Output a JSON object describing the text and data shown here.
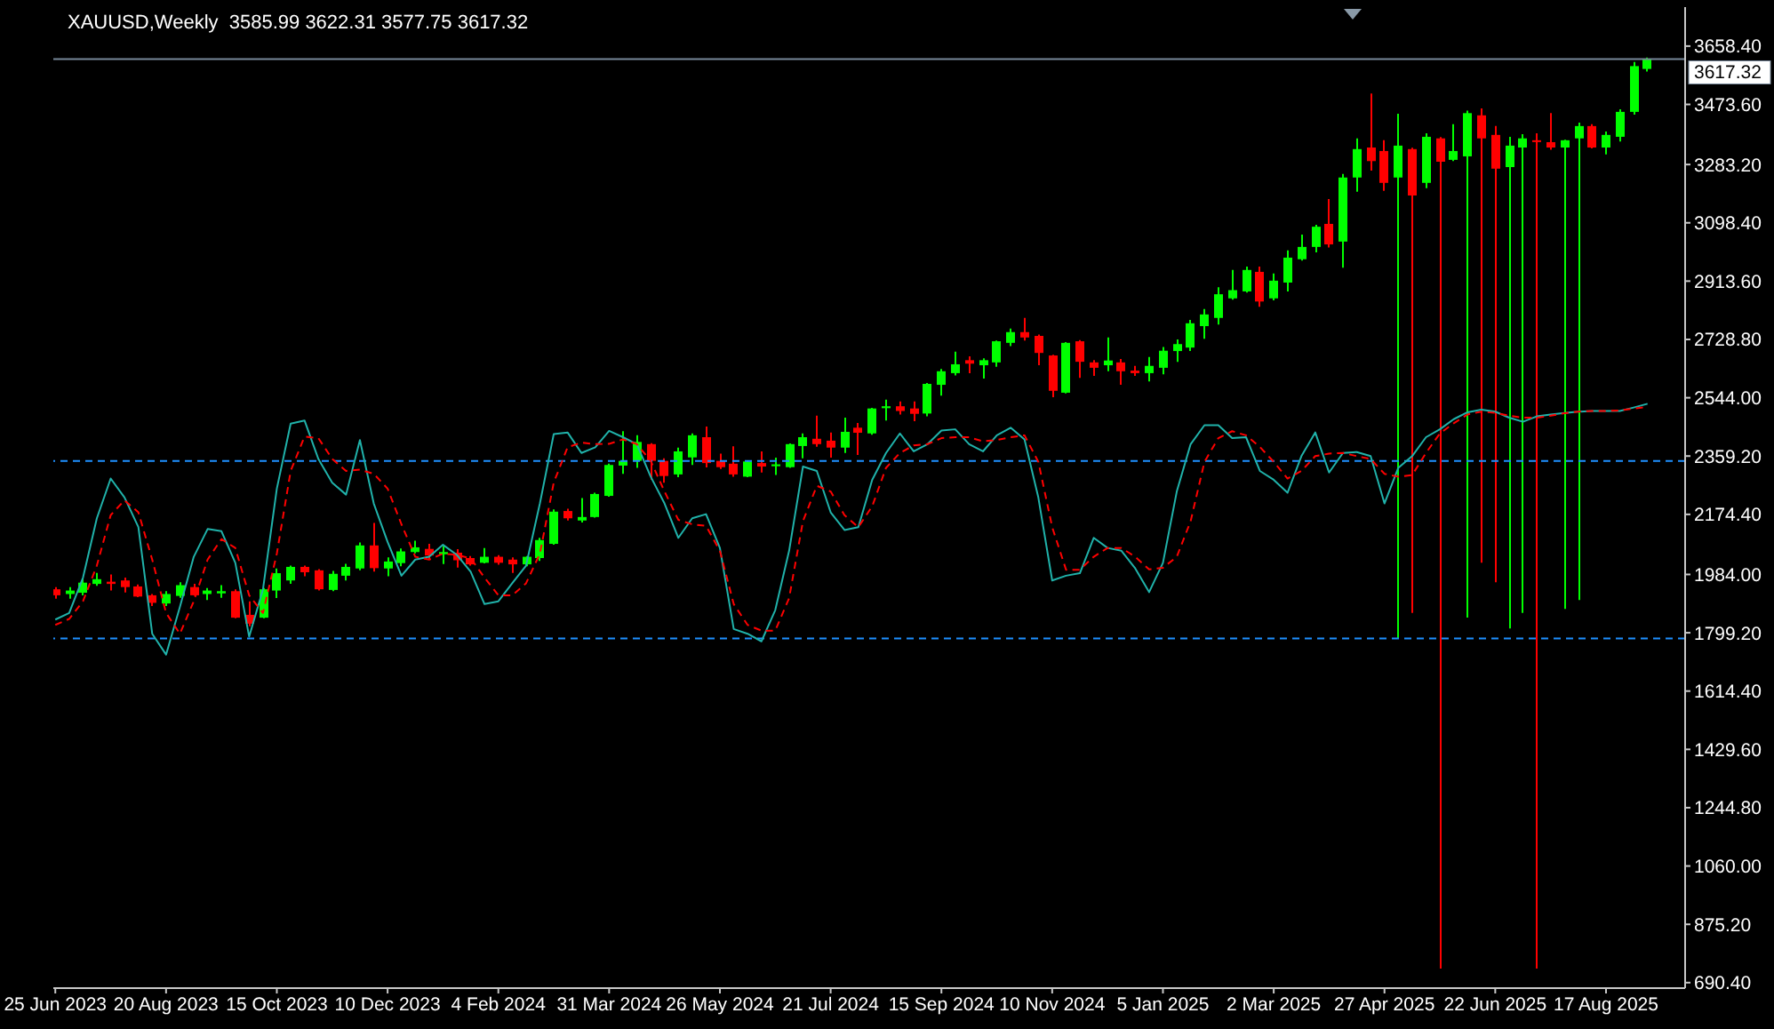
{
  "chart_data": {
    "type": "candlestick",
    "title": "XAUUSD,Weekly  3585.99 3622.31 3577.75 3617.32",
    "marker": "none",
    "x": [
      "2023-06-25",
      "2023-07-02",
      "2023-07-09",
      "2023-07-16",
      "2023-07-23",
      "2023-07-30",
      "2023-08-06",
      "2023-08-13",
      "2023-08-20",
      "2023-08-27",
      "2023-09-03",
      "2023-09-10",
      "2023-09-17",
      "2023-09-24",
      "2023-10-01",
      "2023-10-08",
      "2023-10-15",
      "2023-10-22",
      "2023-10-29",
      "2023-11-05",
      "2023-11-12",
      "2023-11-19",
      "2023-11-26",
      "2023-12-03",
      "2023-12-10",
      "2023-12-17",
      "2023-12-24",
      "2023-12-31",
      "2024-01-07",
      "2024-01-14",
      "2024-01-21",
      "2024-01-28",
      "2024-02-04",
      "2024-02-11",
      "2024-02-18",
      "2024-02-25",
      "2024-03-03",
      "2024-03-10",
      "2024-03-17",
      "2024-03-24",
      "2024-03-31",
      "2024-04-07",
      "2024-04-14",
      "2024-04-21",
      "2024-04-28",
      "2024-05-05",
      "2024-05-12",
      "2024-05-19",
      "2024-05-26",
      "2024-06-02",
      "2024-06-09",
      "2024-06-16",
      "2024-06-23",
      "2024-06-30",
      "2024-07-07",
      "2024-07-14",
      "2024-07-21",
      "2024-07-28",
      "2024-08-04",
      "2024-08-11",
      "2024-08-18",
      "2024-08-25",
      "2024-09-01",
      "2024-09-08",
      "2024-09-15",
      "2024-09-22",
      "2024-09-29",
      "2024-10-06",
      "2024-10-13",
      "2024-10-20",
      "2024-10-27",
      "2024-11-03",
      "2024-11-10",
      "2024-11-17",
      "2024-11-24",
      "2024-12-01",
      "2024-12-08",
      "2024-12-15",
      "2024-12-22",
      "2024-12-29",
      "2025-01-05",
      "2025-01-12",
      "2025-01-19",
      "2025-01-26",
      "2025-02-02",
      "2025-02-09",
      "2025-02-16",
      "2025-02-23",
      "2025-03-02",
      "2025-03-09",
      "2025-03-16",
      "2025-03-23",
      "2025-03-30",
      "2025-04-06",
      "2025-04-13",
      "2025-04-20",
      "2025-04-27",
      "2025-05-04",
      "2025-05-11",
      "2025-05-18",
      "2025-05-25",
      "2025-06-01",
      "2025-06-08",
      "2025-06-15",
      "2025-06-22",
      "2025-06-29",
      "2025-07-06",
      "2025-07-13",
      "2025-07-20",
      "2025-07-27",
      "2025-08-03",
      "2025-08-10",
      "2025-08-17",
      "2025-08-24",
      "2025-08-31",
      "2025-09-07"
    ],
    "series": [
      {
        "type": "line",
        "color": "#20b2aa",
        "line_style": "solid",
        "values": [
          1841,
          1862,
          1974,
          2162,
          2288,
          2228,
          2134,
          1796,
          1730,
          1881,
          2040,
          2128,
          2121,
          2021,
          1787,
          1937,
          2256,
          2462,
          2472,
          2350,
          2275,
          2237,
          2410,
          2209,
          2087,
          1980,
          2031,
          2040,
          2078,
          2046,
          1993,
          1890,
          1899,
          1956,
          2012,
          2209,
          2429,
          2434,
          2369,
          2387,
          2439,
          2419,
          2397,
          2294,
          2209,
          2100,
          2162,
          2175,
          2068,
          1811,
          1796,
          1772,
          1871,
          2059,
          2326,
          2312,
          2181,
          2125,
          2134,
          2284,
          2369,
          2431,
          2374,
          2397,
          2440,
          2444,
          2397,
          2374,
          2425,
          2449,
          2412,
          2228,
          1965,
          1980,
          1988,
          2100,
          2068,
          2059,
          2003,
          1928,
          2021,
          2247,
          2397,
          2457,
          2457,
          2416,
          2419,
          2312,
          2284,
          2243,
          2359,
          2434,
          2307,
          2369,
          2372,
          2359,
          2209,
          2322,
          2359,
          2419,
          2444,
          2476,
          2498,
          2506,
          2500,
          2481,
          2468,
          2485,
          2491,
          2496,
          2500,
          2502,
          2502,
          2502,
          2513,
          2525
        ]
      },
      {
        "type": "line",
        "color": "#ff0000",
        "line_style": "dashed",
        "values": [
          1824,
          1843,
          1899,
          2012,
          2172,
          2219,
          2181,
          2031,
          1862,
          1796,
          1899,
          2031,
          2096,
          2068,
          1918,
          1862,
          2050,
          2312,
          2421,
          2416,
          2350,
          2312,
          2316,
          2303,
          2256,
          2143,
          2040,
          2031,
          2050,
          2046,
          2035,
          1974,
          1918,
          1918,
          1956,
          2050,
          2275,
          2387,
          2402,
          2397,
          2398,
          2412,
          2397,
          2344,
          2247,
          2157,
          2143,
          2138,
          2059,
          1890,
          1824,
          1806,
          1806,
          1909,
          2153,
          2265,
          2247,
          2172,
          2134,
          2200,
          2322,
          2369,
          2393,
          2397,
          2416,
          2419,
          2419,
          2406,
          2410,
          2419,
          2425,
          2341,
          2134,
          1999,
          1999,
          2040,
          2068,
          2068,
          2040,
          2000,
          2005,
          2040,
          2153,
          2341,
          2416,
          2438,
          2425,
          2388,
          2341,
          2288,
          2312,
          2359,
          2367,
          2369,
          2359,
          2350,
          2303,
          2294,
          2299,
          2369,
          2431,
          2463,
          2491,
          2500,
          2496,
          2487,
          2481,
          2481,
          2487,
          2495,
          2500,
          2502,
          2502,
          2504,
          2510,
          2515
        ]
      },
      {
        "ohlc": [
          [
            1937,
            1944,
            1907,
            1918
          ],
          [
            1922,
            1944,
            1907,
            1933
          ],
          [
            1926,
            1971,
            1918,
            1958
          ],
          [
            1954,
            1989,
            1948,
            1969
          ],
          [
            1961,
            1984,
            1933,
            1954
          ],
          [
            1965,
            1974,
            1927,
            1944
          ],
          [
            1946,
            1952,
            1912,
            1914
          ],
          [
            1918,
            1922,
            1884,
            1894
          ],
          [
            1892,
            1931,
            1884,
            1922
          ],
          [
            1916,
            1959,
            1910,
            1950
          ],
          [
            1944,
            1954,
            1916,
            1918
          ],
          [
            1922,
            1941,
            1903,
            1933
          ],
          [
            1924,
            1950,
            1910,
            1931
          ],
          [
            1931,
            1937,
            1845,
            1847
          ],
          [
            1856,
            1899,
            1820,
            1828
          ],
          [
            1847,
            1941,
            1845,
            1937
          ],
          [
            1933,
            2003,
            1909,
            1988
          ],
          [
            1965,
            2012,
            1954,
            2008
          ],
          [
            2008,
            2012,
            1978,
            1991
          ],
          [
            1997,
            2001,
            1933,
            1937
          ],
          [
            1935,
            1995,
            1931,
            1986
          ],
          [
            1980,
            2018,
            1965,
            2008
          ],
          [
            2003,
            2085,
            1997,
            2076
          ],
          [
            2076,
            2147,
            1993,
            2004
          ],
          [
            2003,
            2038,
            1978,
            2025
          ],
          [
            2020,
            2066,
            2010,
            2057
          ],
          [
            2055,
            2091,
            2051,
            2070
          ],
          [
            2065,
            2081,
            2031,
            2044
          ],
          [
            2048,
            2074,
            2017,
            2055
          ],
          [
            2053,
            2064,
            2006,
            2029
          ],
          [
            2036,
            2042,
            2012,
            2016
          ],
          [
            2021,
            2068,
            2019,
            2040
          ],
          [
            2040,
            2045,
            2015,
            2021
          ],
          [
            2031,
            2038,
            1989,
            2016
          ],
          [
            2016,
            2042,
            2010,
            2040
          ],
          [
            2036,
            2100,
            2027,
            2093
          ],
          [
            2081,
            2190,
            2078,
            2183
          ],
          [
            2185,
            2192,
            2155,
            2162
          ],
          [
            2155,
            2226,
            2149,
            2166
          ],
          [
            2166,
            2243,
            2164,
            2239
          ],
          [
            2233,
            2335,
            2230,
            2331
          ],
          [
            2329,
            2438,
            2303,
            2344
          ],
          [
            2344,
            2425,
            2322,
            2404
          ],
          [
            2397,
            2400,
            2284,
            2344
          ],
          [
            2344,
            2352,
            2275,
            2296
          ],
          [
            2301,
            2386,
            2292,
            2374
          ],
          [
            2355,
            2431,
            2331,
            2425
          ],
          [
            2419,
            2453,
            2323,
            2337
          ],
          [
            2344,
            2367,
            2318,
            2324
          ],
          [
            2335,
            2390,
            2294,
            2301
          ],
          [
            2294,
            2346,
            2292,
            2342
          ],
          [
            2337,
            2374,
            2307,
            2326
          ],
          [
            2327,
            2354,
            2299,
            2333
          ],
          [
            2324,
            2399,
            2322,
            2397
          ],
          [
            2391,
            2431,
            2352,
            2419
          ],
          [
            2414,
            2487,
            2389,
            2397
          ],
          [
            2408,
            2434,
            2354,
            2386
          ],
          [
            2386,
            2481,
            2369,
            2436
          ],
          [
            2449,
            2464,
            2363,
            2433
          ],
          [
            2431,
            2512,
            2427,
            2510
          ],
          [
            2511,
            2538,
            2472,
            2517
          ],
          [
            2517,
            2532,
            2491,
            2502
          ],
          [
            2510,
            2532,
            2470,
            2493
          ],
          [
            2494,
            2591,
            2485,
            2588
          ],
          [
            2585,
            2635,
            2551,
            2628
          ],
          [
            2622,
            2690,
            2615,
            2650
          ],
          [
            2663,
            2675,
            2622,
            2652
          ],
          [
            2647,
            2669,
            2605,
            2663
          ],
          [
            2656,
            2725,
            2642,
            2723
          ],
          [
            2718,
            2763,
            2708,
            2752
          ],
          [
            2752,
            2797,
            2725,
            2735
          ],
          [
            2740,
            2744,
            2647,
            2686
          ],
          [
            2678,
            2680,
            2546,
            2566
          ],
          [
            2560,
            2720,
            2558,
            2718
          ],
          [
            2723,
            2727,
            2607,
            2658
          ],
          [
            2656,
            2663,
            2613,
            2639
          ],
          [
            2647,
            2735,
            2628,
            2662
          ],
          [
            2656,
            2667,
            2585,
            2628
          ],
          [
            2630,
            2645,
            2613,
            2622
          ],
          [
            2622,
            2673,
            2596,
            2645
          ],
          [
            2639,
            2705,
            2618,
            2693
          ],
          [
            2692,
            2729,
            2658,
            2714
          ],
          [
            2703,
            2791,
            2692,
            2780
          ],
          [
            2771,
            2825,
            2731,
            2808
          ],
          [
            2797,
            2894,
            2776,
            2872
          ],
          [
            2859,
            2949,
            2855,
            2885
          ],
          [
            2881,
            2960,
            2877,
            2949
          ],
          [
            2943,
            2960,
            2832,
            2849
          ],
          [
            2859,
            2938,
            2853,
            2915
          ],
          [
            2909,
            3011,
            2881,
            2988
          ],
          [
            2983,
            3061,
            2979,
            3022
          ],
          [
            3022,
            3092,
            3005,
            3086
          ],
          [
            3095,
            3174,
            3020,
            3030
          ],
          [
            3039,
            3253,
            2956,
            3242
          ],
          [
            3242,
            3366,
            3197,
            3332
          ],
          [
            3337,
            3508,
            3264,
            3294
          ],
          [
            3326,
            3360,
            3200,
            3225
          ],
          [
            3242,
            3444,
            1781,
            3343
          ],
          [
            3332,
            3336,
            1862,
            3185
          ],
          [
            3225,
            3382,
            3208,
            3371
          ],
          [
            3366,
            3370,
            735,
            3292
          ],
          [
            3298,
            3411,
            3294,
            3326
          ],
          [
            3309,
            3454,
            1847,
            3446
          ],
          [
            3439,
            3461,
            2021,
            3366
          ],
          [
            3377,
            3405,
            1959,
            3270
          ],
          [
            3275,
            3371,
            1813,
            3343
          ],
          [
            3337,
            3379,
            1862,
            3366
          ],
          [
            3360,
            3382,
            735,
            3356
          ],
          [
            3354,
            3446,
            3330,
            3337
          ],
          [
            3337,
            3362,
            1875,
            3360
          ],
          [
            3366,
            3416,
            1903,
            3405
          ],
          [
            3405,
            3411,
            3334,
            3337
          ],
          [
            3337,
            3388,
            3315,
            3377
          ],
          [
            3371,
            3458,
            3356,
            3450
          ],
          [
            3450,
            3608,
            3441,
            3595
          ],
          [
            3585.99,
            3622.31,
            3577.75,
            3617.32
          ]
        ],
        "colors": [
          "#ff0000",
          "#00ff00",
          "#00ff00",
          "#00ff00",
          "#ff0000",
          "#ff0000",
          "#ff0000",
          "#ff0000",
          "#00ff00",
          "#00ff00",
          "#ff0000",
          "#00ff00",
          "#00ff00",
          "#ff0000",
          "#ff0000",
          "#00ff00",
          "#00ff00",
          "#00ff00",
          "#ff0000",
          "#ff0000",
          "#00ff00",
          "#00ff00",
          "#00ff00",
          "#ff0000",
          "#00ff00",
          "#00ff00",
          "#00ff00",
          "#ff0000",
          "#00ff00",
          "#ff0000",
          "#ff0000",
          "#00ff00",
          "#ff0000",
          "#ff0000",
          "#00ff00",
          "#00ff00",
          "#00ff00",
          "#ff0000",
          "#00ff00",
          "#00ff00",
          "#00ff00",
          "#00ff00",
          "#00ff00",
          "#ff0000",
          "#ff0000",
          "#00ff00",
          "#00ff00",
          "#ff0000",
          "#ff0000",
          "#ff0000",
          "#00ff00",
          "#ff0000",
          "#00ff00",
          "#00ff00",
          "#00ff00",
          "#ff0000",
          "#ff0000",
          "#00ff00",
          "#ff0000",
          "#00ff00",
          "#00ff00",
          "#ff0000",
          "#ff0000",
          "#00ff00",
          "#00ff00",
          "#00ff00",
          "#ff0000",
          "#00ff00",
          "#00ff00",
          "#00ff00",
          "#ff0000",
          "#ff0000",
          "#ff0000",
          "#00ff00",
          "#ff0000",
          "#ff0000",
          "#00ff00",
          "#ff0000",
          "#ff0000",
          "#00ff00",
          "#00ff00",
          "#00ff00",
          "#00ff00",
          "#00ff00",
          "#00ff00",
          "#00ff00",
          "#00ff00",
          "#ff0000",
          "#00ff00",
          "#00ff00",
          "#00ff00",
          "#00ff00",
          "#ff0000",
          "#00ff00",
          "#00ff00",
          "#ff0000",
          "#ff0000",
          "#00ff00",
          "#ff0000",
          "#00ff00",
          "#ff0000",
          "#00ff00",
          "#00ff00",
          "#ff0000",
          "#ff0000",
          "#00ff00",
          "#00ff00",
          "#ff0000",
          "#ff0000",
          "#00ff00",
          "#00ff00",
          "#ff0000",
          "#00ff00",
          "#00ff00",
          "#00ff00",
          "#00ff00"
        ]
      }
    ],
    "xlim": [
      "2023-06-24",
      "2025-09-26"
    ],
    "xticks": [
      {
        "value": "2023-06-25",
        "label": "25 Jun 2023"
      },
      {
        "value": "2023-08-20",
        "label": "20 Aug 2023"
      },
      {
        "value": "2023-10-15",
        "label": "15 Oct 2023"
      },
      {
        "value": "2023-12-10",
        "label": "10 Dec 2023"
      },
      {
        "value": "2024-02-04",
        "label": "4 Feb 2024"
      },
      {
        "value": "2024-03-31",
        "label": "31 Mar 2024"
      },
      {
        "value": "2024-05-26",
        "label": "26 May 2024"
      },
      {
        "value": "2024-07-21",
        "label": "21 Jul 2024"
      },
      {
        "value": "2024-09-15",
        "label": "15 Sep 2024"
      },
      {
        "value": "2024-11-10",
        "label": "10 Nov 2024"
      },
      {
        "value": "2025-01-05",
        "label": "5 Jan 2025"
      },
      {
        "value": "2025-03-02",
        "label": "2 Mar 2025"
      },
      {
        "value": "2025-04-27",
        "label": "27 Apr 2025"
      },
      {
        "value": "2025-06-22",
        "label": "22 Jun 2025"
      },
      {
        "value": "2025-08-17",
        "label": "17 Aug 2025"
      }
    ],
    "ylim": [
      673,
      3782
    ],
    "yticks": [
      {
        "value": 690.4,
        "label": "690.40"
      },
      {
        "value": 875.2,
        "label": "875.20"
      },
      {
        "value": 1060,
        "label": "1060.00"
      },
      {
        "value": 1244.8,
        "label": "1244.80"
      },
      {
        "value": 1429.6,
        "label": "1429.60"
      },
      {
        "value": 1614.4,
        "label": "1614.40"
      },
      {
        "value": 1799.2,
        "label": "1799.20"
      },
      {
        "value": 1984,
        "label": "1984.00"
      },
      {
        "value": 2174.4,
        "label": "2174.40"
      },
      {
        "value": 2359.2,
        "label": "2359.20"
      },
      {
        "value": 2544,
        "label": "2544.00"
      },
      {
        "value": 2728.8,
        "label": "2728.80"
      },
      {
        "value": 2913.6,
        "label": "2913.60"
      },
      {
        "value": 3098.4,
        "label": "3098.40"
      },
      {
        "value": 3283.2,
        "label": "3283.20"
      },
      {
        "value": 3473.6,
        "label": "3473.60"
      },
      {
        "value": 3658.4,
        "label": "3658.40"
      }
    ],
    "ref_lines": [
      {
        "axis": "y",
        "value": 2344,
        "color": "#1e90ff",
        "line_style": "dashed"
      },
      {
        "axis": "y",
        "value": 1781,
        "color": "#1e90ff",
        "line_style": "dashed"
      },
      {
        "axis": "y",
        "value": 3617.32,
        "label": "3617.32",
        "color": "#778899",
        "line_style": "solid"
      }
    ]
  }
}
